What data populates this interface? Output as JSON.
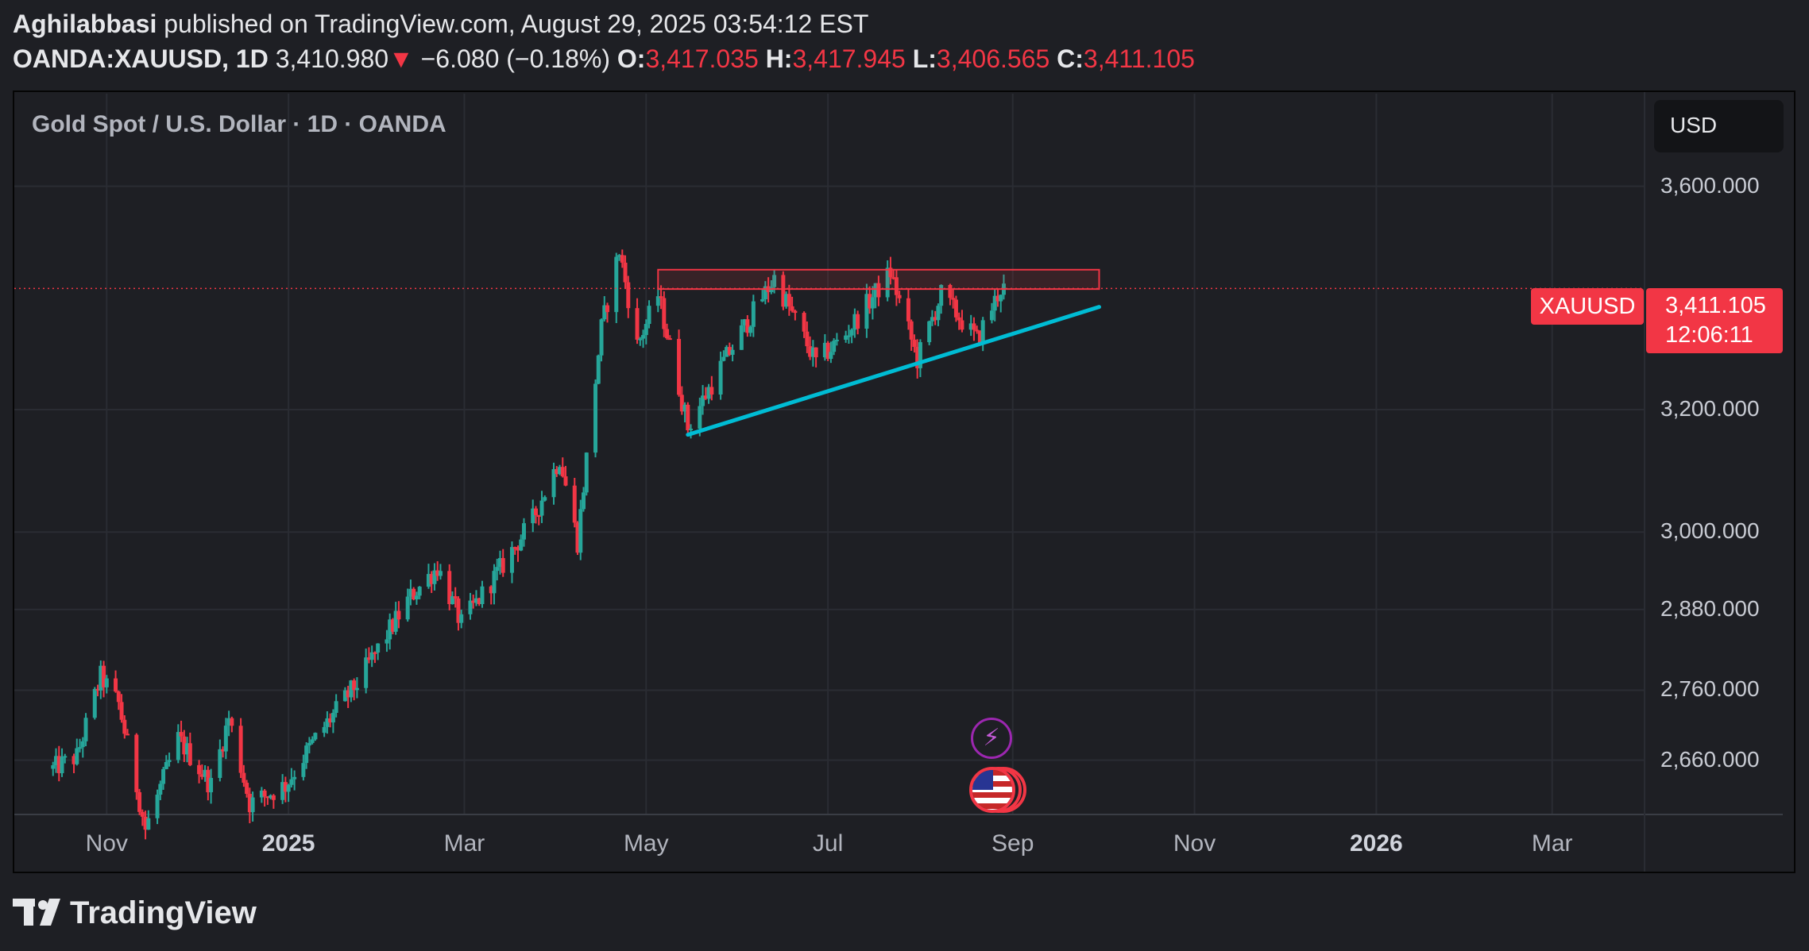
{
  "header": {
    "author": "Aghilabbasi",
    "published_text": "published on TradingView.com, August 29, 2025 03:54:12 EST",
    "symbol": "OANDA:XAUUSD, 1D",
    "last_price": "3,410.980",
    "change_arrow": "▼",
    "change": "−6.080 (−0.18%)",
    "open_label": "O:",
    "open": "3,417.035",
    "high_label": "H:",
    "high": "3,417.945",
    "low_label": "L:",
    "low": "3,406.565",
    "close_label": "C:",
    "close": "3,411.105"
  },
  "chart_title": "Gold Spot / U.S. Dollar · 1D · OANDA",
  "currency": "USD",
  "price_tag": {
    "symbol": "XAUUSD",
    "price": "3,411.105",
    "countdown": "12:06:11"
  },
  "branding": "TradingView",
  "colors": {
    "up": "#26a69a",
    "down": "#f23645",
    "trendline": "#00bcd4",
    "resistance": "#f23645",
    "event": "#9c27b0"
  },
  "chart_data": {
    "type": "candlestick",
    "title": "Gold Spot / U.S. Dollar · 1D · OANDA",
    "y_scale": "log",
    "ylim": [
      2585,
      3780
    ],
    "y_ticks": [
      "3,600.000",
      "3,200.000",
      "3,000.000",
      "2,880.000",
      "2,760.000",
      "2,660.000"
    ],
    "y_tick_values": [
      3600,
      3200,
      3000,
      2880,
      2760,
      2660
    ],
    "x_ticks": [
      {
        "label": "Nov",
        "date": "2024-11-01"
      },
      {
        "label": "2025",
        "date": "2025-01-01",
        "year": true
      },
      {
        "label": "Mar",
        "date": "2025-03-01"
      },
      {
        "label": "May",
        "date": "2025-05-01"
      },
      {
        "label": "Jul",
        "date": "2025-07-01"
      },
      {
        "label": "Sep",
        "date": "2025-09-01"
      },
      {
        "label": "Nov",
        "date": "2025-11-01"
      },
      {
        "label": "2026",
        "date": "2026-01-01",
        "year": true
      },
      {
        "label": "Mar",
        "date": "2026-03-01"
      }
    ],
    "current_price": 3411.105,
    "price_path": [
      [
        "2024-10-14",
        2648
      ],
      [
        "2024-10-22",
        2665
      ],
      [
        "2024-10-30",
        2780
      ],
      [
        "2024-11-05",
        2740
      ],
      [
        "2024-11-14",
        2565
      ],
      [
        "2024-11-25",
        2690
      ],
      [
        "2024-12-06",
        2625
      ],
      [
        "2024-12-12",
        2720
      ],
      [
        "2024-12-19",
        2600
      ],
      [
        "2024-12-31",
        2625
      ],
      [
        "2025-01-10",
        2690
      ],
      [
        "2025-01-24",
        2770
      ],
      [
        "2025-02-11",
        2900
      ],
      [
        "2025-02-20",
        2945
      ],
      [
        "2025-02-28",
        2858
      ],
      [
        "2025-03-12",
        2935
      ],
      [
        "2025-03-24",
        3020
      ],
      [
        "2025-04-02",
        3120
      ],
      [
        "2025-04-08",
        2985
      ],
      [
        "2025-04-16",
        3340
      ],
      [
        "2025-04-22",
        3480
      ],
      [
        "2025-04-28",
        3310
      ],
      [
        "2025-05-05",
        3400
      ],
      [
        "2025-05-15",
        3170
      ],
      [
        "2025-05-28",
        3290
      ],
      [
        "2025-06-13",
        3430
      ],
      [
        "2025-06-27",
        3280
      ],
      [
        "2025-07-07",
        3330
      ],
      [
        "2025-07-22",
        3440
      ],
      [
        "2025-07-31",
        3285
      ],
      [
        "2025-08-08",
        3400
      ],
      [
        "2025-08-20",
        3320
      ],
      [
        "2025-08-28",
        3411
      ]
    ],
    "resistance_zone": {
      "start": "2025-05-05",
      "end": "2025-09-30",
      "low": 3410,
      "high": 3445
    },
    "trendline": {
      "start": [
        "2025-05-15",
        3158
      ],
      "end": [
        "2025-09-30",
        3378
      ]
    },
    "events": [
      {
        "date": "2025-09-01",
        "type": "earnings-flash"
      },
      {
        "date": "2025-09-01",
        "type": "us-economic"
      }
    ]
  }
}
